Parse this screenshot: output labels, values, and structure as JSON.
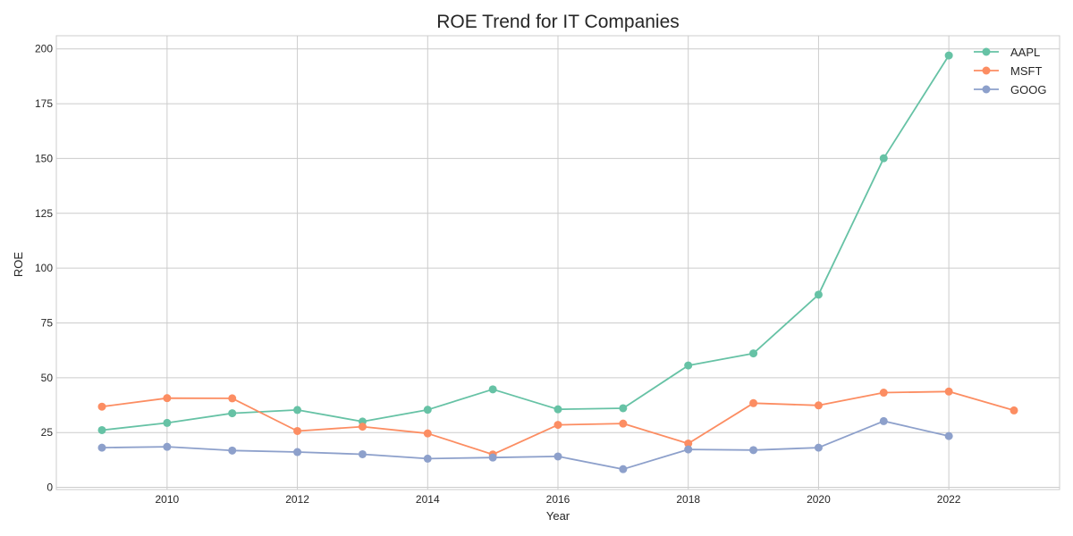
{
  "chart_data": {
    "type": "line",
    "title": "ROE Trend for IT Companies",
    "xlabel": "Year",
    "ylabel": "ROE",
    "xlim": [
      2008.3,
      2023.7
    ],
    "ylim": [
      -1,
      206
    ],
    "xticks": [
      2010,
      2012,
      2014,
      2016,
      2018,
      2020,
      2022
    ],
    "yticks": [
      0,
      25,
      50,
      75,
      100,
      125,
      150,
      175,
      200
    ],
    "grid": true,
    "legend_position": "top-right",
    "series": [
      {
        "name": "AAPL",
        "color": "#66c2a5",
        "x": [
          2009,
          2010,
          2011,
          2012,
          2013,
          2014,
          2015,
          2016,
          2017,
          2018,
          2019,
          2020,
          2021,
          2022
        ],
        "values": [
          26.1,
          29.4,
          33.8,
          35.3,
          30.0,
          35.4,
          44.7,
          35.6,
          36.1,
          55.6,
          61.1,
          87.9,
          150.1,
          197.0
        ]
      },
      {
        "name": "MSFT",
        "color": "#fc8d62",
        "x": [
          2009,
          2010,
          2011,
          2012,
          2013,
          2014,
          2015,
          2016,
          2017,
          2018,
          2019,
          2020,
          2021,
          2022,
          2023
        ],
        "values": [
          36.8,
          40.7,
          40.6,
          25.7,
          27.7,
          24.6,
          15.0,
          28.5,
          29.1,
          20.0,
          38.4,
          37.4,
          43.2,
          43.7,
          35.1
        ]
      },
      {
        "name": "GOOG",
        "color": "#8da0cb",
        "x": [
          2009,
          2010,
          2011,
          2012,
          2013,
          2014,
          2015,
          2016,
          2017,
          2018,
          2019,
          2020,
          2021,
          2022
        ],
        "values": [
          18.1,
          18.5,
          16.8,
          16.1,
          15.1,
          13.1,
          13.6,
          14.1,
          8.3,
          17.3,
          17.0,
          18.1,
          30.2,
          23.4
        ]
      }
    ]
  }
}
